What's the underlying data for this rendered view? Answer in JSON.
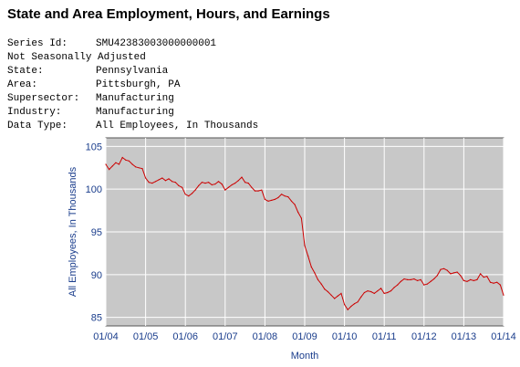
{
  "title": "State and Area Employment, Hours, and Earnings",
  "series_info": [
    {
      "key": "Series Id:",
      "value": "SMU42383003000000001"
    },
    {
      "full": "Not Seasonally Adjusted"
    },
    {
      "key": "State:",
      "value": "Pennsylvania"
    },
    {
      "key": "Area:",
      "value": "Pittsburgh, PA"
    },
    {
      "key": "Supersector:",
      "value": "Manufacturing"
    },
    {
      "key": "Industry:",
      "value": "Manufacturing"
    },
    {
      "key": "Data Type:",
      "value": "All Employees, In Thousands"
    }
  ],
  "colors": {
    "plot_background": "#c8c8c8",
    "grid": "#ffffff",
    "line": "#cc0000",
    "axis_text": "#1a3d8c"
  },
  "chart_data": {
    "type": "line",
    "title": "",
    "xlabel": "Month",
    "ylabel": "All Employees, In Thousands",
    "xlim": [
      "01/04",
      "01/14"
    ],
    "ylim": [
      84,
      106
    ],
    "x_tick_labels": [
      "01/04",
      "01/05",
      "01/06",
      "01/07",
      "01/08",
      "01/09",
      "01/10",
      "01/11",
      "01/12",
      "01/13",
      "01/14"
    ],
    "y_ticks": [
      85,
      90,
      95,
      100,
      105
    ],
    "grid": true,
    "series": [
      {
        "values": [
          {
            "x": "01/04",
            "y": 102.9
          },
          {
            "x": "02/04",
            "y": 102.3
          },
          {
            "x": "03/04",
            "y": 102.7
          },
          {
            "x": "04/04",
            "y": 103.1
          },
          {
            "x": "05/04",
            "y": 102.9
          },
          {
            "x": "06/04",
            "y": 103.7
          },
          {
            "x": "07/04",
            "y": 103.4
          },
          {
            "x": "08/04",
            "y": 103.3
          },
          {
            "x": "09/04",
            "y": 102.9
          },
          {
            "x": "10/04",
            "y": 102.6
          },
          {
            "x": "11/04",
            "y": 102.5
          },
          {
            "x": "12/04",
            "y": 102.4
          },
          {
            "x": "01/05",
            "y": 101.3
          },
          {
            "x": "02/05",
            "y": 100.8
          },
          {
            "x": "03/05",
            "y": 100.7
          },
          {
            "x": "04/05",
            "y": 100.9
          },
          {
            "x": "05/05",
            "y": 101.1
          },
          {
            "x": "06/05",
            "y": 101.3
          },
          {
            "x": "07/05",
            "y": 101.0
          },
          {
            "x": "08/05",
            "y": 101.2
          },
          {
            "x": "09/05",
            "y": 100.9
          },
          {
            "x": "10/05",
            "y": 100.8
          },
          {
            "x": "11/05",
            "y": 100.4
          },
          {
            "x": "12/05",
            "y": 100.2
          },
          {
            "x": "01/06",
            "y": 99.4
          },
          {
            "x": "02/06",
            "y": 99.2
          },
          {
            "x": "03/06",
            "y": 99.5
          },
          {
            "x": "04/06",
            "y": 99.9
          },
          {
            "x": "05/06",
            "y": 100.4
          },
          {
            "x": "06/06",
            "y": 100.8
          },
          {
            "x": "07/06",
            "y": 100.7
          },
          {
            "x": "08/06",
            "y": 100.8
          },
          {
            "x": "09/06",
            "y": 100.5
          },
          {
            "x": "10/06",
            "y": 100.6
          },
          {
            "x": "11/06",
            "y": 100.9
          },
          {
            "x": "12/06",
            "y": 100.6
          },
          {
            "x": "01/07",
            "y": 99.9
          },
          {
            "x": "02/07",
            "y": 100.2
          },
          {
            "x": "03/07",
            "y": 100.5
          },
          {
            "x": "04/07",
            "y": 100.7
          },
          {
            "x": "05/07",
            "y": 101.0
          },
          {
            "x": "06/07",
            "y": 101.4
          },
          {
            "x": "07/07",
            "y": 100.8
          },
          {
            "x": "08/07",
            "y": 100.7
          },
          {
            "x": "09/07",
            "y": 100.2
          },
          {
            "x": "10/07",
            "y": 99.8
          },
          {
            "x": "11/07",
            "y": 99.8
          },
          {
            "x": "12/07",
            "y": 99.9
          },
          {
            "x": "01/08",
            "y": 98.8
          },
          {
            "x": "02/08",
            "y": 98.6
          },
          {
            "x": "03/08",
            "y": 98.7
          },
          {
            "x": "04/08",
            "y": 98.8
          },
          {
            "x": "05/08",
            "y": 99.0
          },
          {
            "x": "06/08",
            "y": 99.4
          },
          {
            "x": "07/08",
            "y": 99.2
          },
          {
            "x": "08/08",
            "y": 99.1
          },
          {
            "x": "09/08",
            "y": 98.6
          },
          {
            "x": "10/08",
            "y": 98.2
          },
          {
            "x": "11/08",
            "y": 97.3
          },
          {
            "x": "12/08",
            "y": 96.6
          },
          {
            "x": "01/09",
            "y": 93.4
          },
          {
            "x": "02/09",
            "y": 92.2
          },
          {
            "x": "03/09",
            "y": 90.9
          },
          {
            "x": "04/09",
            "y": 90.2
          },
          {
            "x": "05/09",
            "y": 89.4
          },
          {
            "x": "06/09",
            "y": 88.9
          },
          {
            "x": "07/09",
            "y": 88.3
          },
          {
            "x": "08/09",
            "y": 88.0
          },
          {
            "x": "09/09",
            "y": 87.6
          },
          {
            "x": "10/09",
            "y": 87.2
          },
          {
            "x": "11/09",
            "y": 87.5
          },
          {
            "x": "12/09",
            "y": 87.8
          },
          {
            "x": "01/10",
            "y": 86.5
          },
          {
            "x": "02/10",
            "y": 85.9
          },
          {
            "x": "03/10",
            "y": 86.3
          },
          {
            "x": "04/10",
            "y": 86.6
          },
          {
            "x": "05/10",
            "y": 86.8
          },
          {
            "x": "06/10",
            "y": 87.4
          },
          {
            "x": "07/10",
            "y": 87.9
          },
          {
            "x": "08/10",
            "y": 88.1
          },
          {
            "x": "09/10",
            "y": 88.0
          },
          {
            "x": "10/10",
            "y": 87.8
          },
          {
            "x": "11/10",
            "y": 88.1
          },
          {
            "x": "12/10",
            "y": 88.4
          },
          {
            "x": "01/11",
            "y": 87.8
          },
          {
            "x": "02/11",
            "y": 87.9
          },
          {
            "x": "03/11",
            "y": 88.1
          },
          {
            "x": "04/11",
            "y": 88.5
          },
          {
            "x": "05/11",
            "y": 88.8
          },
          {
            "x": "06/11",
            "y": 89.2
          },
          {
            "x": "07/11",
            "y": 89.5
          },
          {
            "x": "08/11",
            "y": 89.4
          },
          {
            "x": "09/11",
            "y": 89.4
          },
          {
            "x": "10/11",
            "y": 89.5
          },
          {
            "x": "11/11",
            "y": 89.3
          },
          {
            "x": "12/11",
            "y": 89.4
          },
          {
            "x": "01/12",
            "y": 88.8
          },
          {
            "x": "02/12",
            "y": 88.9
          },
          {
            "x": "03/12",
            "y": 89.2
          },
          {
            "x": "04/12",
            "y": 89.5
          },
          {
            "x": "05/12",
            "y": 89.9
          },
          {
            "x": "06/12",
            "y": 90.6
          },
          {
            "x": "07/12",
            "y": 90.7
          },
          {
            "x": "08/12",
            "y": 90.5
          },
          {
            "x": "09/12",
            "y": 90.1
          },
          {
            "x": "10/12",
            "y": 90.2
          },
          {
            "x": "11/12",
            "y": 90.3
          },
          {
            "x": "12/12",
            "y": 89.9
          },
          {
            "x": "01/13",
            "y": 89.3
          },
          {
            "x": "02/13",
            "y": 89.2
          },
          {
            "x": "03/13",
            "y": 89.4
          },
          {
            "x": "04/13",
            "y": 89.3
          },
          {
            "x": "05/13",
            "y": 89.4
          },
          {
            "x": "06/13",
            "y": 90.1
          },
          {
            "x": "07/13",
            "y": 89.7
          },
          {
            "x": "08/13",
            "y": 89.8
          },
          {
            "x": "09/13",
            "y": 89.1
          },
          {
            "x": "10/13",
            "y": 89.0
          },
          {
            "x": "11/13",
            "y": 89.1
          },
          {
            "x": "12/13",
            "y": 88.8
          },
          {
            "x": "01/14",
            "y": 87.6
          }
        ]
      }
    ]
  }
}
